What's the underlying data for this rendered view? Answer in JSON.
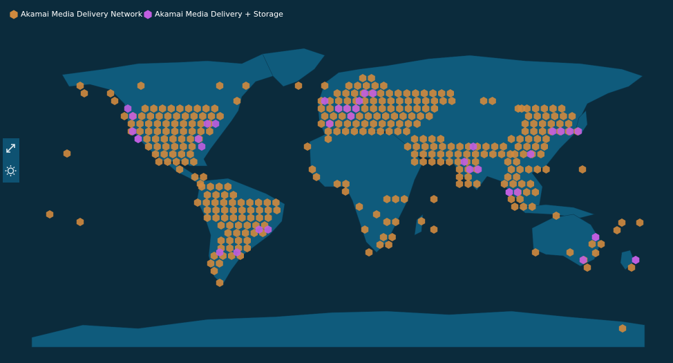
{
  "legend": {
    "items": [
      {
        "label": "Akamai Media Delivery Network",
        "color": "#d08a3e"
      },
      {
        "label": "Akamai Media Delivery + Storage",
        "color": "#c05ee0"
      }
    ]
  }
}
